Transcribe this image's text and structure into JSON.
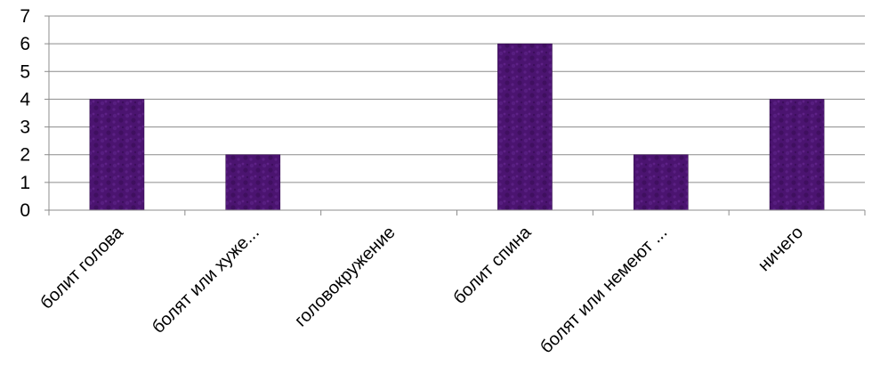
{
  "chart_data": {
    "type": "bar",
    "categories": [
      "болит голова",
      "болят или хуже...",
      "головокружение",
      "болит спина",
      "болят или немеют ...",
      "ничего"
    ],
    "values": [
      4,
      2,
      0,
      6,
      2,
      4
    ],
    "title": "",
    "xlabel": "",
    "ylabel": "",
    "ylim": [
      0,
      7
    ],
    "yticks": [
      "0",
      "1",
      "2",
      "3",
      "4",
      "5",
      "6",
      "7"
    ],
    "grid": true,
    "legend": "none",
    "colors": {
      "bar": "#4b1470",
      "bar_edge": "#2e0a47",
      "grid": "#8c8c8c",
      "axis": "#8c8c8c"
    }
  }
}
